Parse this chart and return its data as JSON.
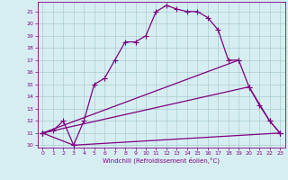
{
  "xlabel": "Windchill (Refroidissement éolien,°C)",
  "xlim": [
    -0.5,
    23.5
  ],
  "ylim": [
    9.8,
    21.8
  ],
  "yticks": [
    10,
    11,
    12,
    13,
    14,
    15,
    16,
    17,
    18,
    19,
    20,
    21
  ],
  "xticks": [
    0,
    1,
    2,
    3,
    4,
    5,
    6,
    7,
    8,
    9,
    10,
    11,
    12,
    13,
    14,
    15,
    16,
    17,
    18,
    19,
    20,
    21,
    22,
    23
  ],
  "line_color": "#800080",
  "bg_color": "#d6eef2",
  "grid_color": "#aacccc",
  "line1_x": [
    0,
    1,
    2,
    3,
    4,
    5,
    6,
    7,
    8,
    9,
    10,
    11,
    12,
    13,
    14,
    15,
    16,
    17,
    18,
    19,
    20,
    21,
    22,
    23
  ],
  "line1_y": [
    11.0,
    11.2,
    12.0,
    10.0,
    12.0,
    15.0,
    15.5,
    17.0,
    18.5,
    18.5,
    19.0,
    21.0,
    21.5,
    21.2,
    21.0,
    21.0,
    20.5,
    19.5,
    17.0,
    17.0,
    14.8,
    13.3,
    12.0,
    11.0
  ],
  "line2_x": [
    0,
    19
  ],
  "line2_y": [
    11.0,
    17.0
  ],
  "line3_x": [
    0,
    20,
    22,
    23
  ],
  "line3_y": [
    11.0,
    14.8,
    12.0,
    11.0
  ],
  "line4_x": [
    0,
    3,
    23
  ],
  "line4_y": [
    11.0,
    10.0,
    11.0
  ],
  "marker": "+",
  "markersize": 4,
  "linewidth": 0.9
}
